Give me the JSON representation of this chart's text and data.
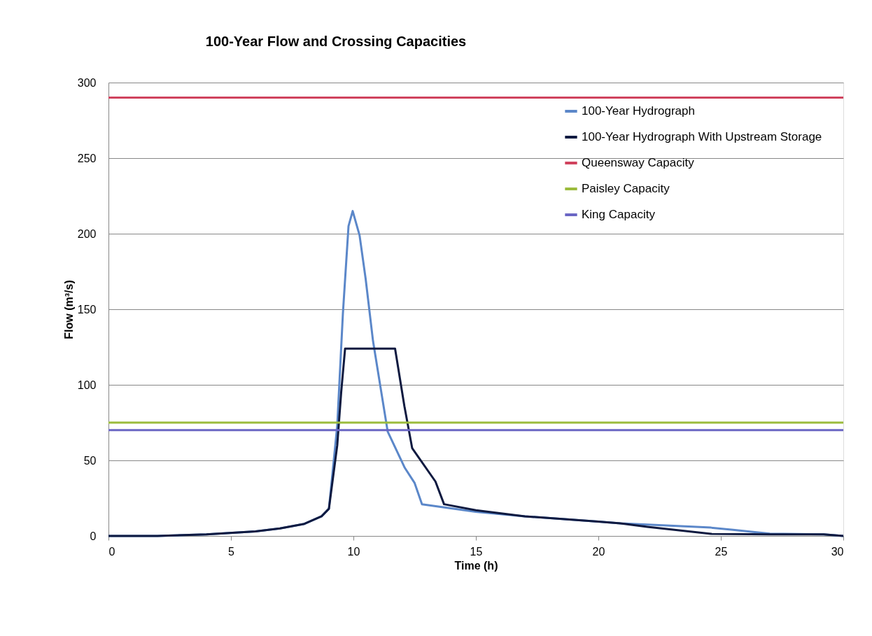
{
  "chart_data": {
    "type": "line",
    "title": "100-Year Flow and Crossing Capacities",
    "xlabel": "Time (h)",
    "ylabel": "Flow (m³/s)",
    "xlim": [
      0,
      30
    ],
    "xticks": [
      0,
      5,
      10,
      15,
      20,
      25,
      30
    ],
    "ylim": [
      0,
      300
    ],
    "yticks": [
      0,
      50,
      100,
      150,
      200,
      250,
      300
    ],
    "grid": "y",
    "legend": "top right",
    "marker": "none",
    "line_style": "solid",
    "series": [
      {
        "name": "100-Year Hydrograph",
        "color": "#5b87c9",
        "x": [
          0,
          2,
          4,
          6,
          7,
          8,
          8.7,
          9,
          9.34,
          9.57,
          9.8,
          9.97,
          10.25,
          10.5,
          10.8,
          11.4,
          12.1,
          12.5,
          12.8,
          15,
          17,
          20,
          20.9,
          22,
          24.6,
          25.5,
          27,
          29.2,
          30
        ],
        "values": [
          0,
          0,
          1,
          3,
          5,
          8,
          13,
          18,
          73,
          147,
          205,
          215,
          199,
          170,
          129,
          69,
          45,
          35,
          21,
          16,
          13,
          9.5,
          8.3,
          7.5,
          5.5,
          4,
          1.5,
          1,
          0
        ]
      },
      {
        "name": "100-Year Hydrograph With Upstream Storage",
        "color": "#0f1a40",
        "x": [
          0,
          2,
          4,
          6,
          7,
          8,
          8.7,
          9,
          9.34,
          9.5,
          9.66,
          11.7,
          12.08,
          12.4,
          13.35,
          13.7,
          15,
          17,
          20,
          20.9,
          22,
          24.6,
          27,
          29.2,
          30
        ],
        "values": [
          0,
          0,
          1,
          3,
          5,
          8,
          13,
          18,
          60,
          95,
          124,
          124,
          86,
          58,
          36,
          21,
          17,
          13,
          9.5,
          8.3,
          6,
          1.4,
          1,
          1,
          0
        ]
      },
      {
        "name": "Queensway Capacity",
        "color": "#d0435e",
        "x": [
          0,
          30
        ],
        "values": [
          290,
          290
        ]
      },
      {
        "name": "Paisley Capacity",
        "color": "#9bbb3c",
        "x": [
          0,
          30
        ],
        "values": [
          75,
          75
        ]
      },
      {
        "name": "King Capacity",
        "color": "#6a66c4",
        "x": [
          0,
          30
        ],
        "values": [
          70,
          70
        ]
      }
    ]
  }
}
